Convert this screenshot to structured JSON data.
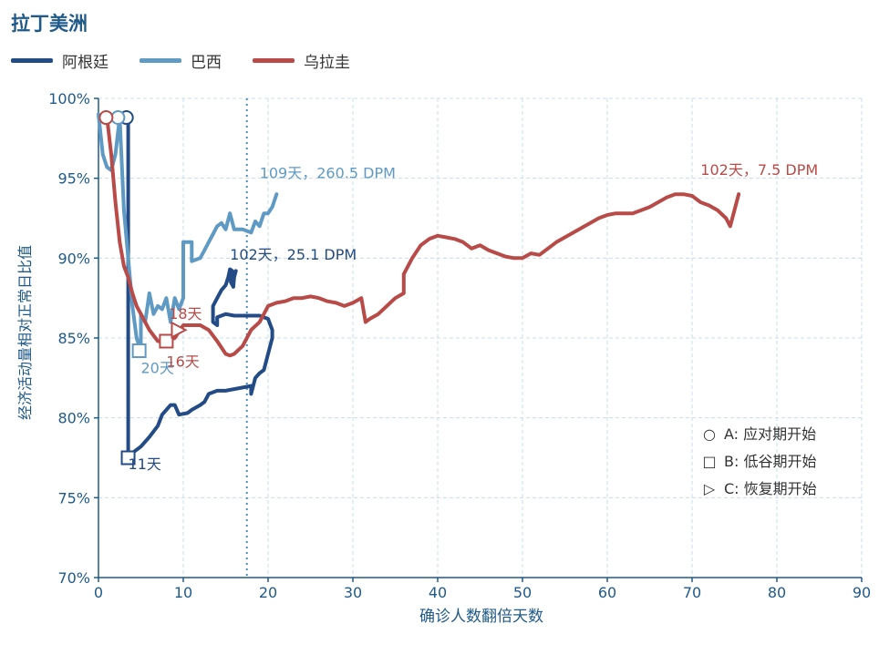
{
  "chart_data": {
    "type": "line",
    "title": "拉丁美洲",
    "xlabel": "确诊人数翻倍天数",
    "ylabel": "经济活动量相对正常日比值",
    "xlim": [
      0,
      90
    ],
    "ylim": [
      70,
      100
    ],
    "xticks": [
      "0",
      "10",
      "20",
      "30",
      "40",
      "50",
      "60",
      "70",
      "80",
      "90"
    ],
    "yticks": [
      "70%",
      "75%",
      "80%",
      "85%",
      "90%",
      "95%",
      "100%"
    ],
    "grid": true,
    "legend_position": "top-left",
    "reference_line_x": 17.5,
    "series": [
      {
        "name": "阿根廷",
        "color": "#234b86",
        "points": [
          [
            3,
            98.8
          ],
          [
            3.5,
            98.5
          ],
          [
            3.5,
            77.5
          ],
          [
            4,
            77.8
          ],
          [
            5,
            78.2
          ],
          [
            6,
            78.8
          ],
          [
            7,
            79.5
          ],
          [
            7.5,
            80.2
          ],
          [
            8,
            80.5
          ],
          [
            8.5,
            80.8
          ],
          [
            9,
            80.8
          ],
          [
            9.5,
            80.2
          ],
          [
            10.5,
            80.3
          ],
          [
            11,
            80.5
          ],
          [
            12,
            80.8
          ],
          [
            12.5,
            81.0
          ],
          [
            13,
            81.5
          ],
          [
            14,
            81.7
          ],
          [
            15,
            81.7
          ],
          [
            16,
            81.8
          ],
          [
            17,
            81.9
          ],
          [
            18,
            82.0
          ],
          [
            18,
            81.5
          ],
          [
            18.5,
            82.5
          ],
          [
            19,
            82.8
          ],
          [
            19.5,
            83.0
          ],
          [
            20,
            84.0
          ],
          [
            20.5,
            85.0
          ],
          [
            20.5,
            85.5
          ],
          [
            20,
            86.2
          ],
          [
            19,
            86.4
          ],
          [
            18,
            86.4
          ],
          [
            17,
            86.4
          ],
          [
            16,
            86.4
          ],
          [
            15,
            86.5
          ],
          [
            14,
            86.3
          ],
          [
            14,
            85.8
          ],
          [
            13.5,
            86.0
          ],
          [
            13.5,
            87.0
          ],
          [
            14,
            87.5
          ],
          [
            14.5,
            88.0
          ],
          [
            15,
            88.3
          ],
          [
            15.3,
            88.8
          ],
          [
            15.5,
            89.3
          ],
          [
            15.8,
            89.2
          ],
          [
            15.6,
            88.5
          ],
          [
            15.9,
            88.2
          ],
          [
            16,
            88.8
          ],
          [
            16.2,
            89.2
          ]
        ],
        "labels": [
          {
            "text": "102天，25.1 DPM",
            "x": 15.5,
            "y": 89.9
          },
          {
            "text": "11天",
            "x": 3.5,
            "y": 76.8
          }
        ]
      },
      {
        "name": "巴西",
        "color": "#5f9ac4",
        "points": [
          [
            0,
            99
          ],
          [
            0.5,
            96.5
          ],
          [
            1,
            95.7
          ],
          [
            1.5,
            95.5
          ],
          [
            2,
            96.5
          ],
          [
            2.5,
            98.8
          ],
          [
            3,
            93
          ],
          [
            3.5,
            90
          ],
          [
            4,
            87
          ],
          [
            4.5,
            85
          ],
          [
            5,
            84.2
          ],
          [
            5,
            86.5
          ],
          [
            5.5,
            86.0
          ],
          [
            6,
            87.8
          ],
          [
            6.5,
            86.5
          ],
          [
            7,
            87.0
          ],
          [
            7.5,
            86.8
          ],
          [
            8,
            87.5
          ],
          [
            8.5,
            86.0
          ],
          [
            9,
            87.5
          ],
          [
            9.5,
            86.8
          ],
          [
            10,
            87.5
          ],
          [
            10,
            91.0
          ],
          [
            11,
            91.0
          ],
          [
            11,
            89.8
          ],
          [
            12,
            90.0
          ],
          [
            12.5,
            90.5
          ],
          [
            13,
            91.0
          ],
          [
            13.5,
            91.5
          ],
          [
            14,
            92.0
          ],
          [
            14.5,
            92.2
          ],
          [
            15,
            91.8
          ],
          [
            15.5,
            92.8
          ],
          [
            16,
            91.8
          ],
          [
            17,
            91.8
          ],
          [
            18,
            91.6
          ],
          [
            18.5,
            92.3
          ],
          [
            19,
            92.0
          ],
          [
            19.5,
            92.8
          ],
          [
            20,
            92.8
          ],
          [
            20.5,
            93.2
          ],
          [
            21,
            94.0
          ]
        ],
        "labels": [
          {
            "text": "109天，260.5 DPM",
            "x": 19,
            "y": 95
          },
          {
            "text": "20天",
            "x": 5,
            "y": 82.8
          }
        ]
      },
      {
        "name": "乌拉圭",
        "color": "#b84a47",
        "points": [
          [
            1,
            98.8
          ],
          [
            1.5,
            96.5
          ],
          [
            2,
            93.5
          ],
          [
            2.5,
            91
          ],
          [
            3,
            89.5
          ],
          [
            3.5,
            88.8
          ],
          [
            4,
            87.8
          ],
          [
            4.5,
            87
          ],
          [
            5,
            86.5
          ],
          [
            6,
            85.5
          ],
          [
            7,
            84.8
          ],
          [
            8,
            84.8
          ],
          [
            9,
            85
          ],
          [
            10,
            85.8
          ],
          [
            11,
            85.8
          ],
          [
            12,
            85.8
          ],
          [
            13,
            85.5
          ],
          [
            14,
            84.8
          ],
          [
            15,
            84.0
          ],
          [
            15.5,
            83.9
          ],
          [
            16,
            84.0
          ],
          [
            17,
            84.5
          ],
          [
            18,
            85.5
          ],
          [
            19,
            86.0
          ],
          [
            19.5,
            86.5
          ],
          [
            20,
            87.0
          ],
          [
            21,
            87.2
          ],
          [
            22,
            87.3
          ],
          [
            23,
            87.5
          ],
          [
            24,
            87.5
          ],
          [
            25,
            87.6
          ],
          [
            26,
            87.5
          ],
          [
            27,
            87.3
          ],
          [
            28,
            87.2
          ],
          [
            29,
            87.0
          ],
          [
            30,
            87.2
          ],
          [
            31,
            87.5
          ],
          [
            31.5,
            86.0
          ],
          [
            32,
            86.2
          ],
          [
            33,
            86.5
          ],
          [
            34,
            87.0
          ],
          [
            35,
            87.5
          ],
          [
            36,
            87.8
          ],
          [
            36,
            89.0
          ],
          [
            37,
            90.0
          ],
          [
            38,
            90.8
          ],
          [
            39,
            91.2
          ],
          [
            40,
            91.4
          ],
          [
            41,
            91.3
          ],
          [
            42,
            91.2
          ],
          [
            43,
            91.0
          ],
          [
            44,
            90.6
          ],
          [
            45,
            90.8
          ],
          [
            46,
            90.5
          ],
          [
            47,
            90.3
          ],
          [
            48,
            90.1
          ],
          [
            49,
            90.0
          ],
          [
            50,
            90.0
          ],
          [
            51,
            90.3
          ],
          [
            52,
            90.2
          ],
          [
            53,
            90.6
          ],
          [
            54,
            91.0
          ],
          [
            55,
            91.3
          ],
          [
            56,
            91.6
          ],
          [
            57,
            91.9
          ],
          [
            58,
            92.2
          ],
          [
            59,
            92.5
          ],
          [
            60,
            92.7
          ],
          [
            61,
            92.8
          ],
          [
            62,
            92.8
          ],
          [
            63,
            92.8
          ],
          [
            64,
            93.0
          ],
          [
            65,
            93.2
          ],
          [
            66,
            93.5
          ],
          [
            67,
            93.8
          ],
          [
            68,
            94.0
          ],
          [
            69,
            94.0
          ],
          [
            70,
            93.9
          ],
          [
            71,
            93.5
          ],
          [
            72,
            93.3
          ],
          [
            73,
            93.0
          ],
          [
            74,
            92.5
          ],
          [
            74.5,
            92.0
          ],
          [
            75,
            93.0
          ],
          [
            75.5,
            94.0
          ]
        ],
        "labels": [
          {
            "text": "102天，7.5 DPM",
            "x": 71,
            "y": 95.2
          },
          {
            "text": "18天",
            "x": 8.3,
            "y": 86.2
          },
          {
            "text": "16天",
            "x": 8,
            "y": 83.2
          }
        ]
      }
    ],
    "markers": [
      {
        "shape": "circle",
        "series": "阿根廷",
        "x": 3.3,
        "y": 98.8
      },
      {
        "shape": "circle",
        "series": "巴西",
        "x": 2.3,
        "y": 98.8
      },
      {
        "shape": "circle",
        "series": "乌拉圭",
        "x": 0.9,
        "y": 98.8
      },
      {
        "shape": "square",
        "series": "阿根廷",
        "x": 3.5,
        "y": 77.5
      },
      {
        "shape": "square",
        "series": "巴西",
        "x": 4.8,
        "y": 84.2
      },
      {
        "shape": "square",
        "series": "乌拉圭",
        "x": 8,
        "y": 84.8
      },
      {
        "shape": "triangle",
        "series": "乌拉圭",
        "x": 9.3,
        "y": 85.5
      }
    ],
    "marker_legend": [
      {
        "symbol": "○",
        "text": "A: 应对期开始"
      },
      {
        "symbol": "□",
        "text": "B: 低谷期开始"
      },
      {
        "symbol": "▷",
        "text": "C: 恢复期开始"
      }
    ]
  }
}
